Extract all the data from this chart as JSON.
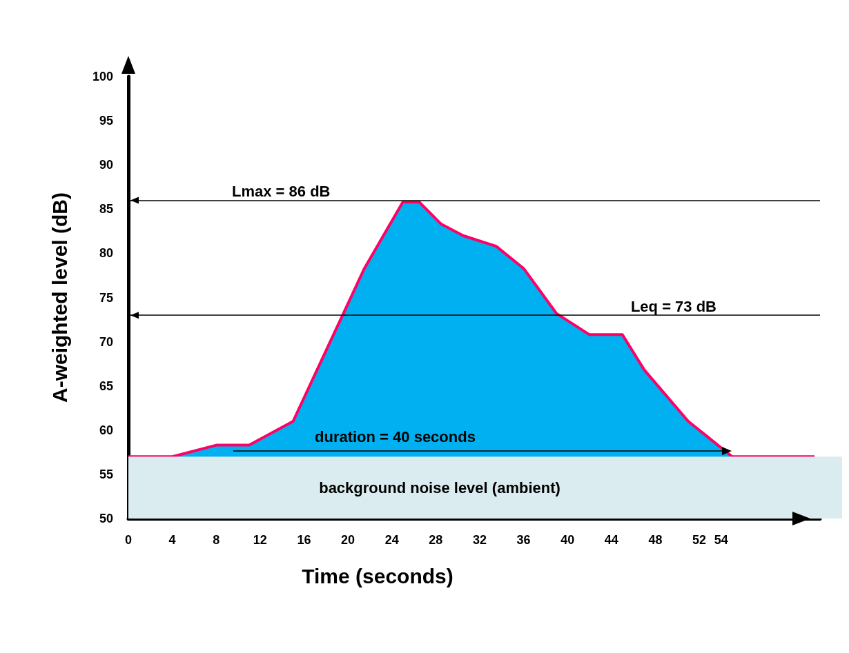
{
  "chart_data": {
    "type": "area",
    "xlabel": "Time (seconds)",
    "ylabel": "A-weighted level (dB)",
    "x": [
      0,
      4,
      8,
      11,
      15,
      21.5,
      25,
      26.5,
      28.5,
      30.5,
      33.5,
      36,
      39,
      42,
      45,
      47,
      51,
      55,
      62.5
    ],
    "series": [
      {
        "color": "#00b0f0",
        "values": [
          57,
          57,
          58.3,
          58.3,
          61,
          78.3,
          85.8,
          85.8,
          83.3,
          82,
          80.8,
          78.3,
          73.2,
          70.8,
          70.8,
          66.8,
          61,
          57,
          57
        ]
      },
      {
        "type": "line",
        "color": "#ff0066",
        "values": [
          57,
          57,
          58.3,
          58.3,
          61,
          78.3,
          85.8,
          85.8,
          83.3,
          82,
          80.8,
          78.3,
          73.2,
          70.8,
          70.8,
          66.8,
          61,
          57,
          57
        ]
      }
    ],
    "xlim": [
      0,
      63
    ],
    "xticks": [
      0,
      4,
      8,
      12,
      16,
      20,
      24,
      28,
      32,
      36,
      40,
      44,
      48,
      52,
      54
    ],
    "ylim": [
      50,
      100
    ],
    "yticks": [
      50,
      55,
      60,
      65,
      70,
      75,
      80,
      85,
      90,
      95,
      100
    ],
    "grid": false,
    "marker": "none",
    "line_style": "solid",
    "ref_lines": [
      {
        "axis": "y",
        "value": 86,
        "label": "Lmax = 86 dB",
        "color": "#000000"
      },
      {
        "axis": "y",
        "value": 73,
        "label": "Leq = 73 dB",
        "color": "#000000"
      }
    ],
    "bands": [
      {
        "axis": "y",
        "from": 50,
        "to": 57,
        "label": "background noise level (ambient)",
        "color": "#daecef"
      }
    ],
    "annotations": [
      "duration = 40 seconds"
    ]
  }
}
